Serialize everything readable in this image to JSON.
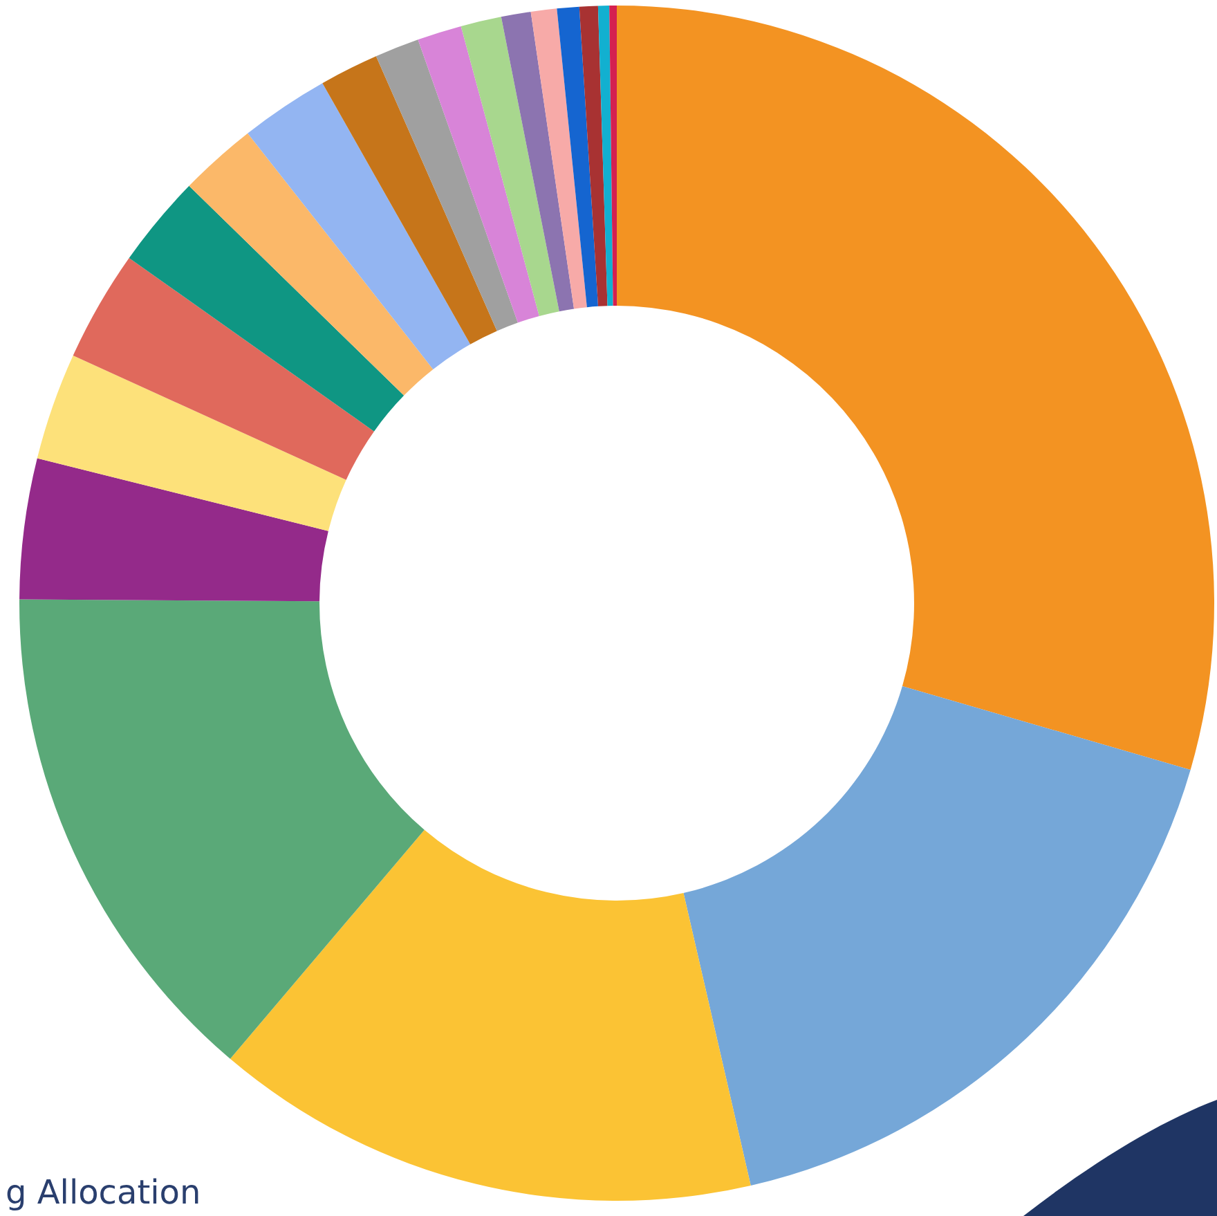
{
  "chart_data": {
    "type": "donut",
    "categories": [
      null,
      null,
      null,
      null,
      null,
      null,
      null,
      null,
      null,
      null,
      null,
      null,
      null,
      null,
      null,
      null,
      null,
      null,
      null,
      null
    ],
    "values": [
      29.5,
      16.9,
      14.8,
      13.9,
      3.8,
      2.9,
      3.0,
      2.5,
      2.1,
      2.4,
      1.6,
      1.2,
      1.2,
      1.1,
      0.8,
      0.7,
      0.6,
      0.5,
      0.3,
      0.2
    ],
    "colors": [
      "#f39322",
      "#75a7d8",
      "#fbc334",
      "#5aa978",
      "#942a8a",
      "#fde17a",
      "#e0695c",
      "#0f9683",
      "#fbb869",
      "#93b5f2",
      "#c6751a",
      "#a0a0a0",
      "#d884d8",
      "#a8d78e",
      "#8c74b0",
      "#f7aaa8",
      "#1565d0",
      "#a83232",
      "#12b0d0",
      "#d42050"
    ],
    "annotations": [
      "g Allocation"
    ]
  }
}
